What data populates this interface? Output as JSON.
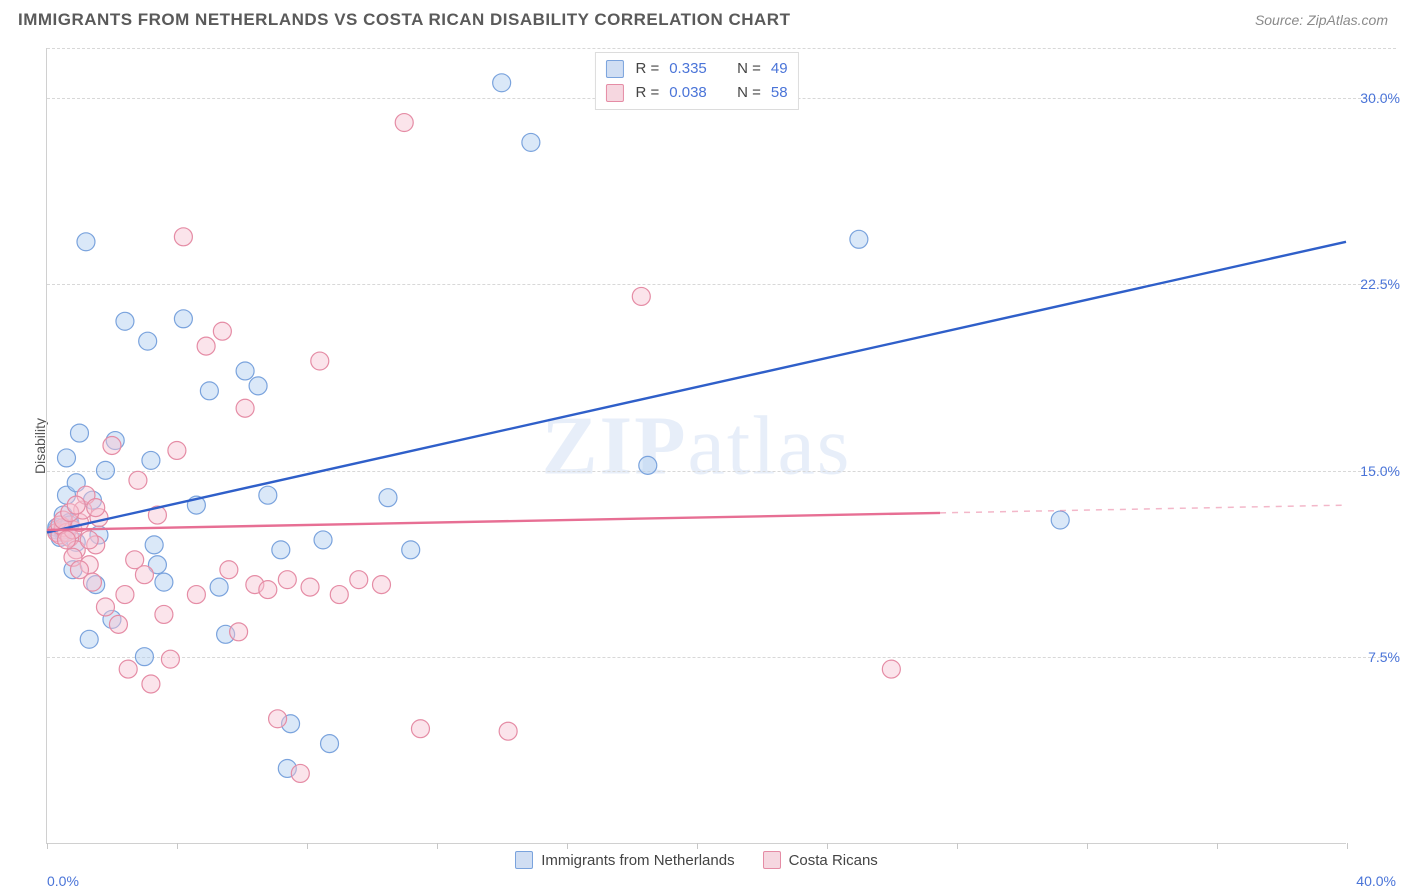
{
  "title": "IMMIGRANTS FROM NETHERLANDS VS COSTA RICAN DISABILITY CORRELATION CHART",
  "source": "Source: ZipAtlas.com",
  "ylabel": "Disability",
  "watermark": "ZIPatlas",
  "chart": {
    "type": "scatter",
    "xlim": [
      0,
      40
    ],
    "ylim": [
      0,
      32
    ],
    "xticks_pct": [
      0,
      10,
      20,
      30,
      40,
      50,
      60,
      70,
      80,
      90,
      100
    ],
    "xmin_label": "0.0%",
    "xmax_label": "40.0%",
    "yticks": [
      {
        "value": 7.5,
        "label": "7.5%"
      },
      {
        "value": 15.0,
        "label": "15.0%"
      },
      {
        "value": 22.5,
        "label": "22.5%"
      },
      {
        "value": 30.0,
        "label": "30.0%"
      }
    ],
    "background_color": "#ffffff",
    "grid_color": "#d8d8d8",
    "marker_radius": 9,
    "marker_opacity": 0.45,
    "line_width": 2.4,
    "series": [
      {
        "name": "Immigrants from Netherlands",
        "color_fill": "#aecbef",
        "color_stroke": "#7aa3dd",
        "line_color": "#2f5fc9",
        "R": "0.335",
        "N": "49",
        "regression": {
          "x1": 0,
          "y1": 12.5,
          "x2": 40,
          "y2": 24.2,
          "dashed_from_x": null
        },
        "points": [
          [
            0.3,
            12.6
          ],
          [
            0.3,
            12.7
          ],
          [
            0.5,
            12.5
          ],
          [
            0.5,
            13.2
          ],
          [
            0.6,
            14.0
          ],
          [
            0.6,
            15.5
          ],
          [
            0.7,
            12.9
          ],
          [
            0.8,
            11.0
          ],
          [
            0.9,
            14.5
          ],
          [
            1.0,
            16.5
          ],
          [
            1.2,
            24.2
          ],
          [
            1.3,
            8.2
          ],
          [
            1.4,
            13.8
          ],
          [
            1.5,
            10.4
          ],
          [
            1.6,
            12.4
          ],
          [
            1.8,
            15.0
          ],
          [
            2.0,
            9.0
          ],
          [
            2.1,
            16.2
          ],
          [
            2.4,
            21.0
          ],
          [
            3.0,
            7.5
          ],
          [
            3.1,
            20.2
          ],
          [
            3.2,
            15.4
          ],
          [
            3.3,
            12.0
          ],
          [
            3.4,
            11.2
          ],
          [
            3.6,
            10.5
          ],
          [
            4.2,
            21.1
          ],
          [
            4.6,
            13.6
          ],
          [
            5.0,
            18.2
          ],
          [
            5.3,
            10.3
          ],
          [
            5.5,
            8.4
          ],
          [
            6.1,
            19.0
          ],
          [
            6.5,
            18.4
          ],
          [
            6.8,
            14.0
          ],
          [
            7.2,
            11.8
          ],
          [
            7.4,
            3.0
          ],
          [
            7.5,
            4.8
          ],
          [
            8.5,
            12.2
          ],
          [
            8.7,
            4.0
          ],
          [
            10.5,
            13.9
          ],
          [
            11.2,
            11.8
          ],
          [
            14.0,
            30.6
          ],
          [
            14.9,
            28.2
          ],
          [
            18.5,
            15.2
          ],
          [
            25.0,
            24.3
          ],
          [
            31.2,
            13.0
          ],
          [
            0.4,
            12.3
          ],
          [
            0.5,
            12.6
          ],
          [
            0.7,
            12.8
          ],
          [
            0.9,
            12.1
          ]
        ]
      },
      {
        "name": "Costa Ricans",
        "color_fill": "#f6c4d2",
        "color_stroke": "#e58ca5",
        "line_color": "#e76f94",
        "R": "0.038",
        "N": "58",
        "regression": {
          "x1": 0,
          "y1": 12.6,
          "x2": 40,
          "y2": 13.6,
          "dashed_from_x": 27.5
        },
        "points": [
          [
            0.3,
            12.5
          ],
          [
            0.4,
            12.4
          ],
          [
            0.5,
            12.7
          ],
          [
            0.6,
            12.5
          ],
          [
            0.7,
            12.3
          ],
          [
            0.8,
            12.6
          ],
          [
            0.9,
            11.8
          ],
          [
            1.0,
            12.9
          ],
          [
            1.1,
            13.4
          ],
          [
            1.2,
            14.0
          ],
          [
            1.3,
            11.2
          ],
          [
            1.4,
            10.5
          ],
          [
            1.5,
            12.0
          ],
          [
            1.6,
            13.1
          ],
          [
            1.8,
            9.5
          ],
          [
            2.0,
            16.0
          ],
          [
            2.2,
            8.8
          ],
          [
            2.4,
            10.0
          ],
          [
            2.5,
            7.0
          ],
          [
            2.7,
            11.4
          ],
          [
            2.8,
            14.6
          ],
          [
            3.0,
            10.8
          ],
          [
            3.2,
            6.4
          ],
          [
            3.4,
            13.2
          ],
          [
            3.6,
            9.2
          ],
          [
            3.8,
            7.4
          ],
          [
            4.0,
            15.8
          ],
          [
            4.2,
            24.4
          ],
          [
            4.6,
            10.0
          ],
          [
            4.9,
            20.0
          ],
          [
            5.4,
            20.6
          ],
          [
            5.6,
            11.0
          ],
          [
            5.9,
            8.5
          ],
          [
            6.1,
            17.5
          ],
          [
            6.4,
            10.4
          ],
          [
            6.8,
            10.2
          ],
          [
            7.1,
            5.0
          ],
          [
            7.4,
            10.6
          ],
          [
            7.8,
            2.8
          ],
          [
            8.1,
            10.3
          ],
          [
            8.4,
            19.4
          ],
          [
            9.0,
            10.0
          ],
          [
            9.6,
            10.6
          ],
          [
            10.3,
            10.4
          ],
          [
            11.0,
            29.0
          ],
          [
            11.5,
            4.6
          ],
          [
            14.2,
            4.5
          ],
          [
            18.3,
            22.0
          ],
          [
            26.0,
            7.0
          ],
          [
            0.4,
            12.8
          ],
          [
            0.5,
            13.0
          ],
          [
            0.6,
            12.2
          ],
          [
            0.7,
            13.3
          ],
          [
            0.8,
            11.5
          ],
          [
            0.9,
            13.6
          ],
          [
            1.0,
            11.0
          ],
          [
            1.3,
            12.2
          ],
          [
            1.5,
            13.5
          ]
        ]
      }
    ]
  },
  "legend_labels": {
    "R": "R =",
    "N": "N ="
  }
}
